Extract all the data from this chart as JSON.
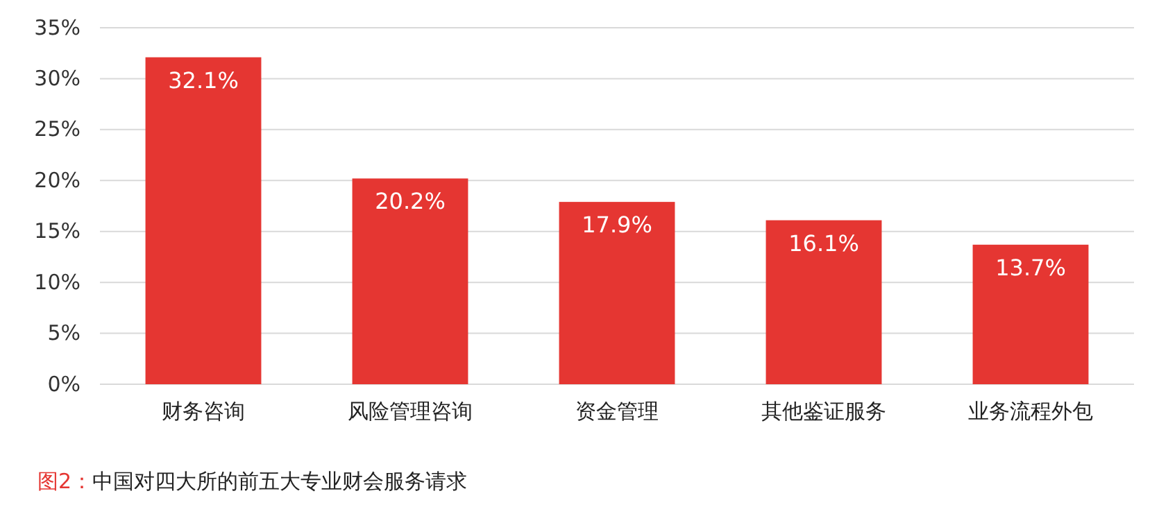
{
  "chart_data": {
    "type": "bar",
    "categories": [
      "财务咨询",
      "风险管理咨询",
      "资金管理",
      "其他鉴证服务",
      "业务流程外包"
    ],
    "values": [
      32.1,
      20.2,
      17.9,
      16.1,
      13.7
    ],
    "color": "#e53632",
    "value_labels": [
      "32.1%",
      "20.2%",
      "17.9%",
      "16.1%",
      "13.7%"
    ],
    "ylim": [
      0,
      35
    ],
    "yticks": [
      {
        "value": 0,
        "label": "0%"
      },
      {
        "value": 5,
        "label": "5%"
      },
      {
        "value": 10,
        "label": "10%"
      },
      {
        "value": 15,
        "label": "15%"
      },
      {
        "value": 20,
        "label": "20%"
      },
      {
        "value": 25,
        "label": "25%"
      },
      {
        "value": 30,
        "label": "30%"
      },
      {
        "value": 35,
        "label": "35%"
      }
    ],
    "grid": "y",
    "annotations": [
      "图2：中国对四大所的前五大专业财会服务请求"
    ]
  }
}
